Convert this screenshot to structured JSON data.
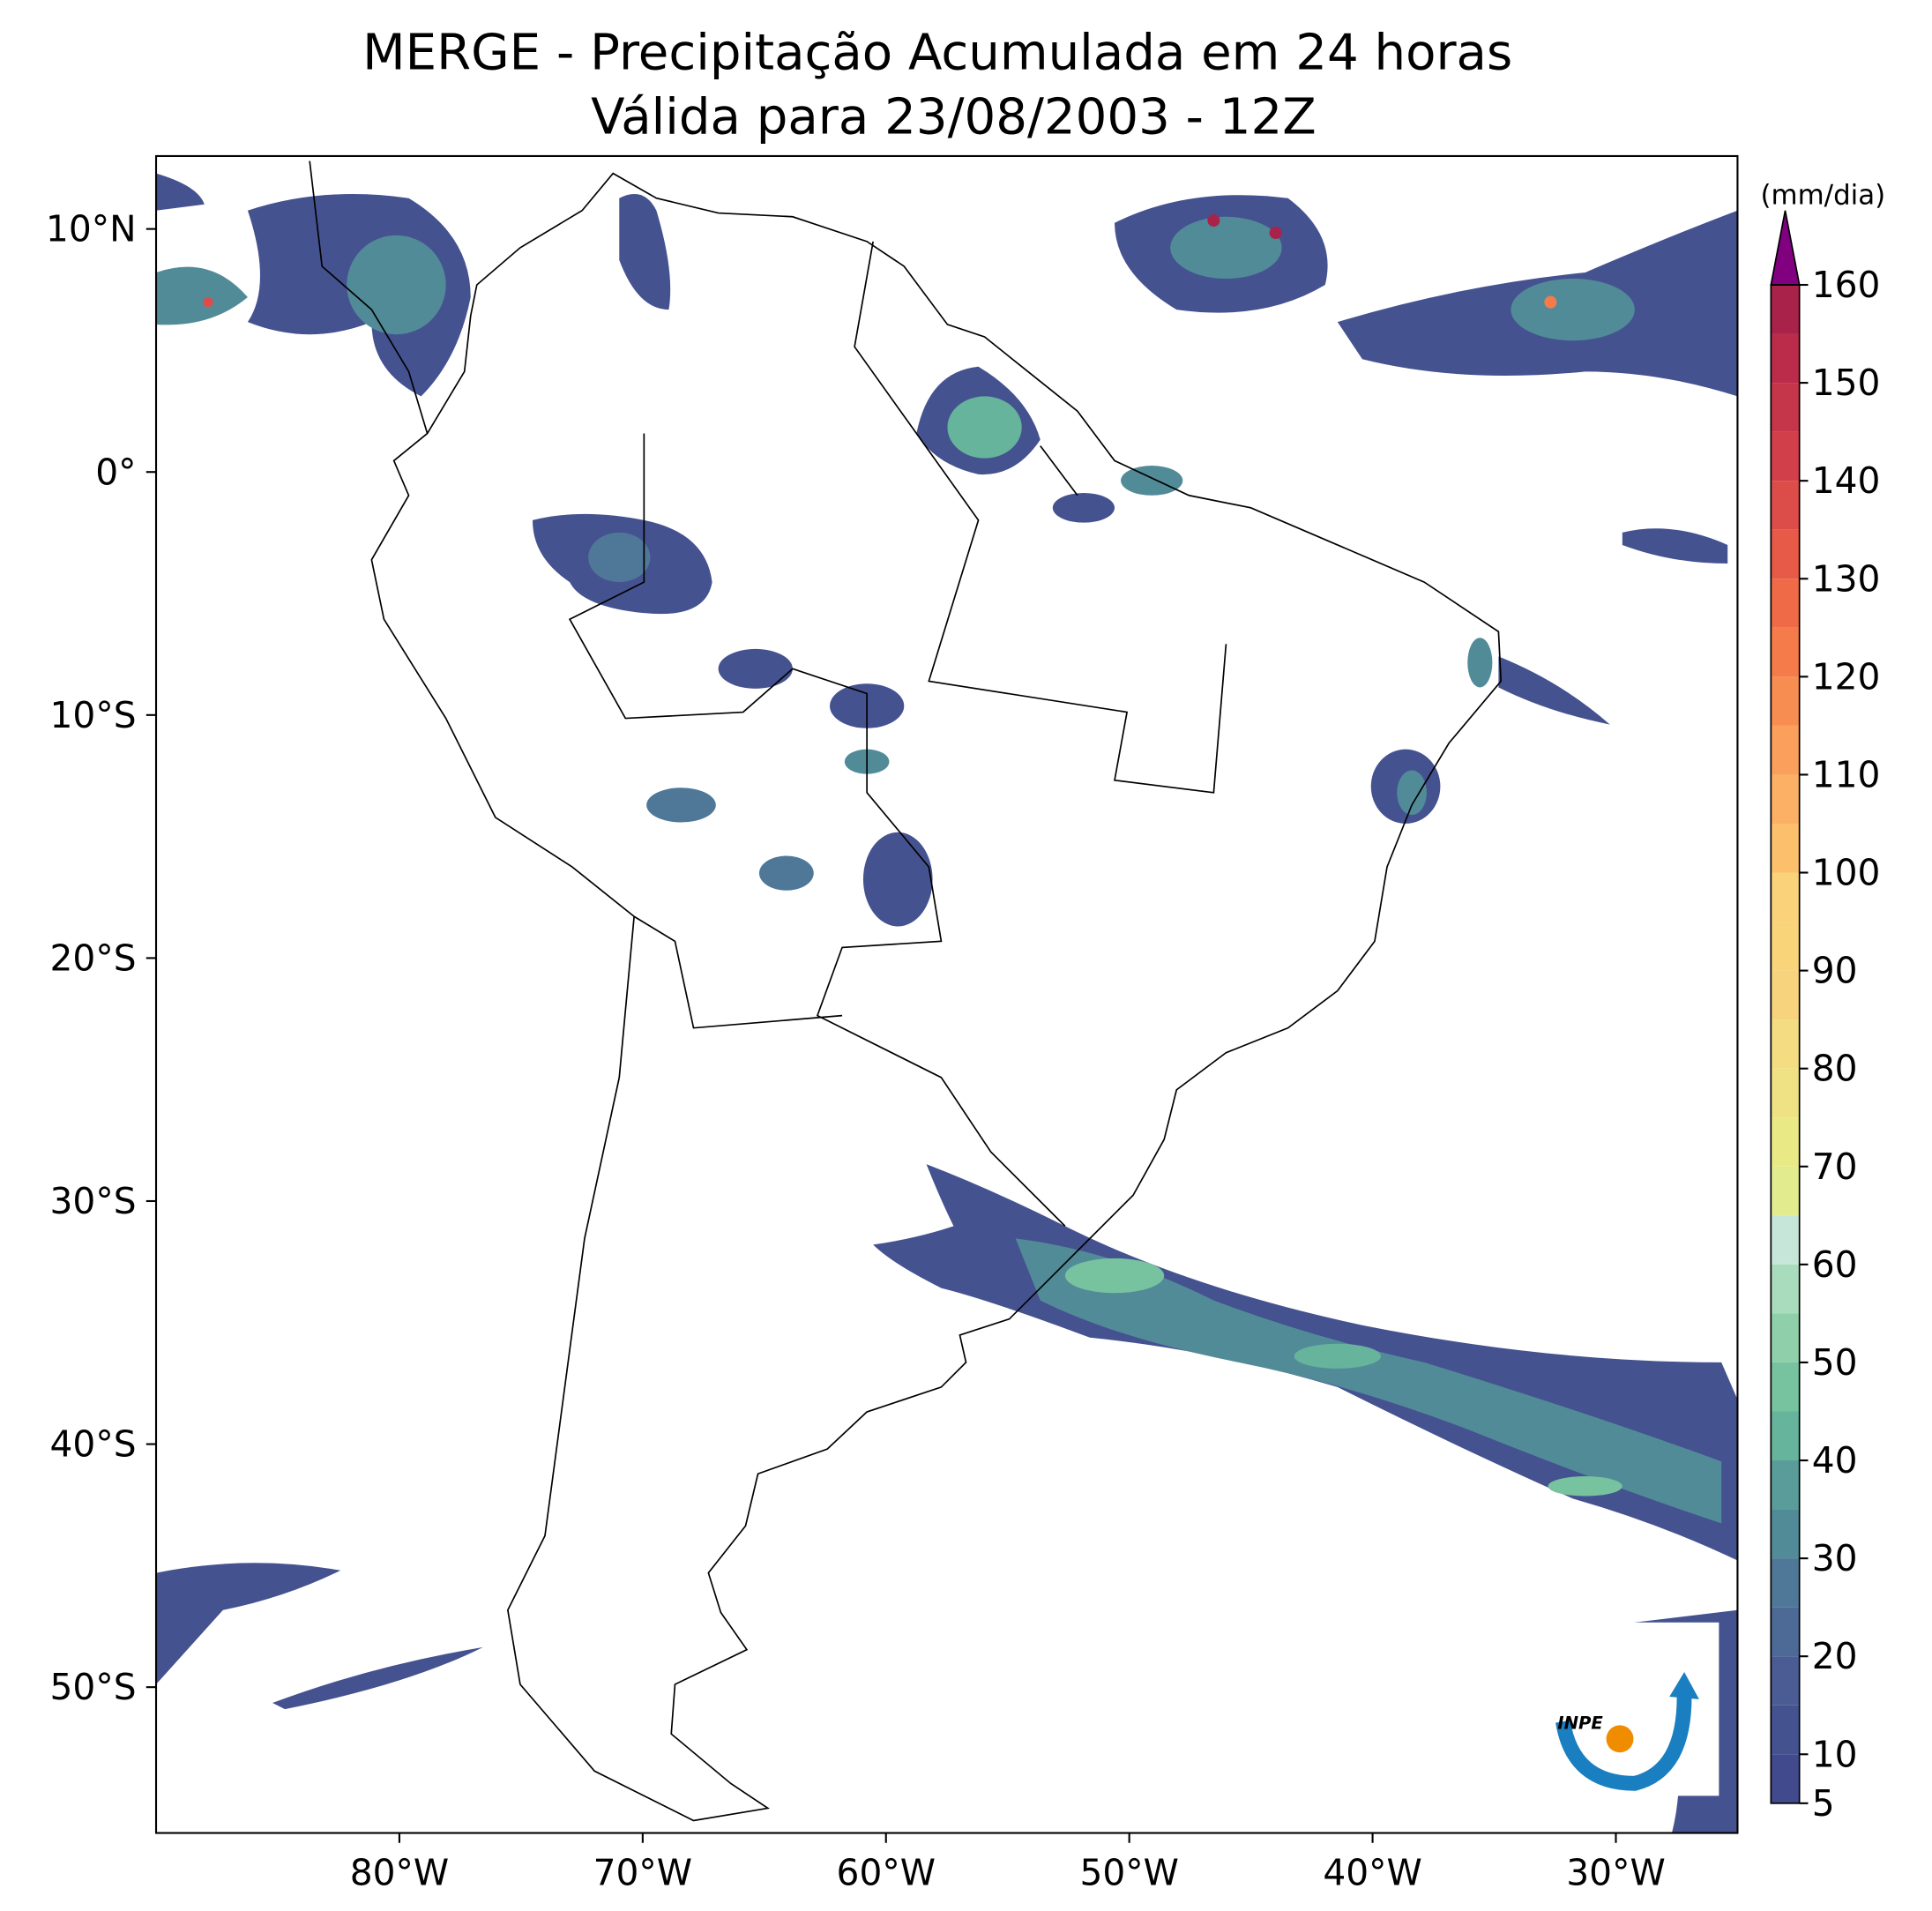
{
  "map": {
    "title": "MERGE - Precipitação Acumulada em 24 horas",
    "subtitle": "Válida para 23/08/2003 - 12Z",
    "xlim": [
      -90,
      -25
    ],
    "ylim": [
      -56,
      13
    ],
    "xticks": [
      {
        "value": -80,
        "label": "80°W"
      },
      {
        "value": -70,
        "label": "70°W"
      },
      {
        "value": -60,
        "label": "60°W"
      },
      {
        "value": -50,
        "label": "50°W"
      },
      {
        "value": -40,
        "label": "40°W"
      },
      {
        "value": -30,
        "label": "30°W"
      }
    ],
    "yticks": [
      {
        "value": 10,
        "label": "10°N"
      },
      {
        "value": 0,
        "label": "0°"
      },
      {
        "value": -10,
        "label": "10°S"
      },
      {
        "value": -20,
        "label": "20°S"
      },
      {
        "value": -30,
        "label": "30°S"
      },
      {
        "value": -40,
        "label": "40°S"
      },
      {
        "value": -50,
        "label": "50°S"
      }
    ],
    "colorbar": {
      "unit": "(mm/dia)",
      "levels": [
        5,
        10,
        15,
        20,
        25,
        30,
        35,
        40,
        45,
        50,
        55,
        60,
        65,
        70,
        75,
        80,
        85,
        90,
        95,
        100,
        105,
        110,
        115,
        120,
        125,
        130,
        135,
        140,
        145,
        150,
        155,
        160
      ],
      "colors": [
        "#414a8d",
        "#455290",
        "#4a5c93",
        "#4d6a96",
        "#4f7898",
        "#528b98",
        "#5a9c99",
        "#66b49c",
        "#77c29f",
        "#8fd0aa",
        "#a9dcbc",
        "#c6e6d9",
        "#e2ec8e",
        "#e9ea86",
        "#efe284",
        "#f4dc82",
        "#f7d37e",
        "#fad479",
        "#fad27a",
        "#fcc06c",
        "#fbb066",
        "#faa05c",
        "#f88d51",
        "#f57b4a",
        "#ef6a46",
        "#e65a47",
        "#dc4d4a",
        "#d1404a",
        "#c6364a",
        "#ba2c4a",
        "#a8224a"
      ],
      "extend_color": "#800080",
      "ticks": [
        5,
        10,
        20,
        30,
        40,
        50,
        60,
        70,
        80,
        90,
        100,
        110,
        120,
        130,
        140,
        150,
        160
      ]
    },
    "logo": "INPE"
  }
}
